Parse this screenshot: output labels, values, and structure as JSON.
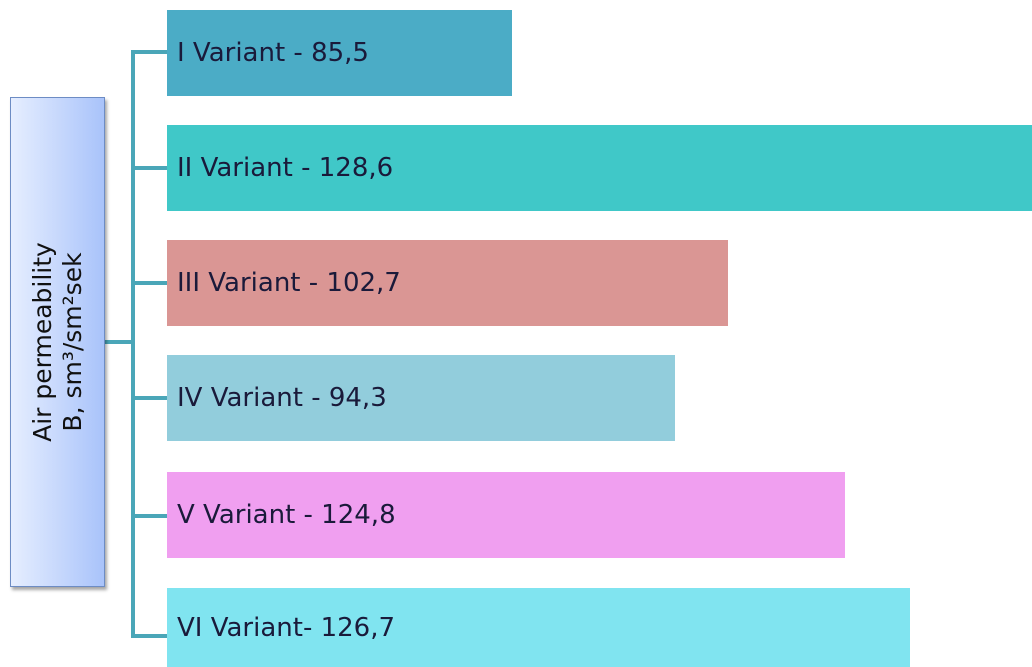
{
  "root": {
    "lines": [
      "Air permeability",
      "B, sm³/sm²sek"
    ]
  },
  "nodes": [
    {
      "label": "I Variant - 85,5"
    },
    {
      "label": "II Variant - 128,6"
    },
    {
      "label": "III Variant - 102,7"
    },
    {
      "label": "IV Variant - 94,3"
    },
    {
      "label": "V Variant - 124,8"
    },
    {
      "label": "VI Variant- 126,7"
    }
  ]
}
